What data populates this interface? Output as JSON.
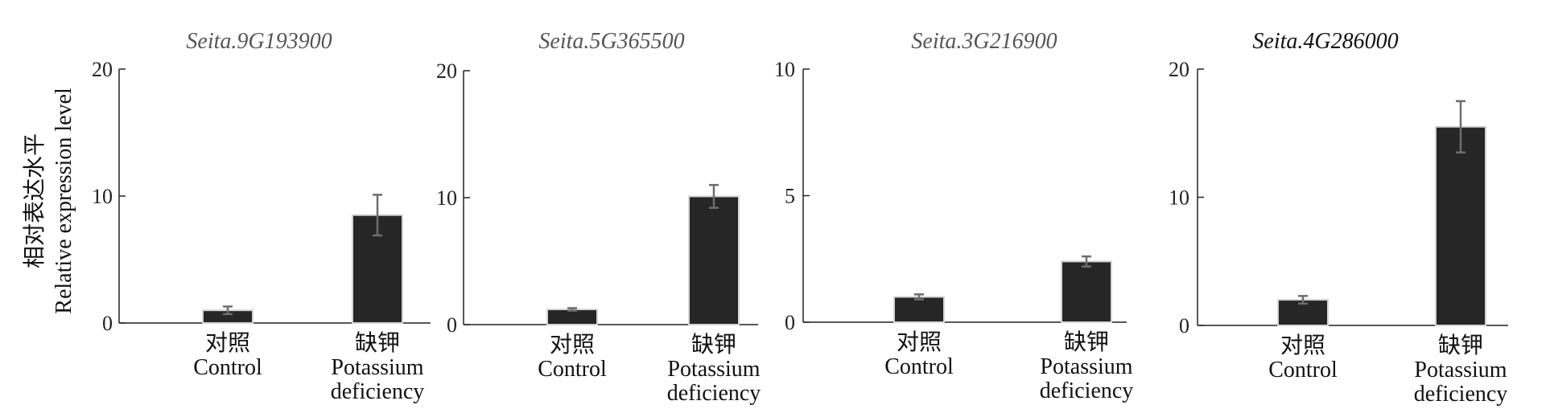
{
  "figure": {
    "ylabel_zh": "相对表达水平",
    "ylabel_en": "Relative expression level"
  },
  "chart_data": [
    {
      "type": "bar",
      "title": "Seita.9G193900",
      "categories": [
        {
          "zh": "对照",
          "en": [
            "Control"
          ]
        },
        {
          "zh": "缺钾",
          "en": [
            "Potassium",
            "deficiency"
          ]
        }
      ],
      "values": [
        1.0,
        8.5
      ],
      "error": [
        0.3,
        1.6
      ],
      "ylim": [
        0,
        20
      ],
      "yticks": [
        "0",
        "10",
        "20"
      ],
      "ylabel": "相对表达水平 Relative expression level",
      "colors": {
        "bar": "#262626",
        "error_bar": "#6e6e6e"
      }
    },
    {
      "type": "bar",
      "title": "Seita.5G365500",
      "categories": [
        {
          "zh": "对照",
          "en": [
            "Control"
          ]
        },
        {
          "zh": "缺钾",
          "en": [
            "Potassium",
            "deficiency"
          ]
        }
      ],
      "values": [
        1.2,
        10.1
      ],
      "error": [
        0.1,
        0.9
      ],
      "ylim": [
        0,
        20
      ],
      "yticks": [
        "0",
        "10",
        "20"
      ],
      "colors": {
        "bar": "#262626",
        "error_bar": "#6e6e6e"
      }
    },
    {
      "type": "bar",
      "title": "Seita.3G216900",
      "categories": [
        {
          "zh": "对照",
          "en": [
            "Control"
          ]
        },
        {
          "zh": "缺钾",
          "en": [
            "Potassium",
            "deficiency"
          ]
        }
      ],
      "values": [
        1.0,
        2.4
      ],
      "error": [
        0.1,
        0.2
      ],
      "ylim": [
        0,
        10
      ],
      "yticks": [
        "0",
        "5",
        "10"
      ],
      "colors": {
        "bar": "#262626",
        "error_bar": "#6e6e6e"
      }
    },
    {
      "type": "bar",
      "title": "Seita.4G286000",
      "categories": [
        {
          "zh": "对照",
          "en": [
            "Control"
          ]
        },
        {
          "zh": "缺钾",
          "en": [
            "Potassium",
            "deficiency"
          ]
        }
      ],
      "values": [
        2.0,
        15.5
      ],
      "error": [
        0.3,
        2.0
      ],
      "ylim": [
        0,
        20
      ],
      "yticks": [
        "0",
        "10",
        "20"
      ],
      "colors": {
        "bar": "#262626",
        "error_bar": "#6e6e6e"
      }
    }
  ]
}
